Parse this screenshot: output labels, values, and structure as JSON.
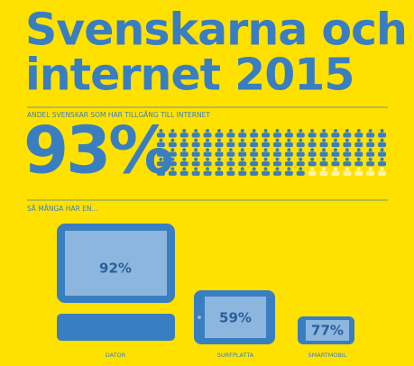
{
  "header": {
    "title_line1": "Svenskarna och",
    "title_line2": "internet 2015"
  },
  "access": {
    "caption": "ANDEL SVENSKAR SOM HAR TILLGÅNG TILL INTERNET",
    "value": "93%",
    "pictogram": {
      "total": 100,
      "filled": 93,
      "per_row": 20
    }
  },
  "devices": {
    "caption": "SÅ MÅNGA HAR EN...",
    "items": [
      {
        "label": "DATOR",
        "value": "92%"
      },
      {
        "label": "SURFPLATTA",
        "value": "59%"
      },
      {
        "label": "SMARTMOBIL",
        "value": "77%"
      }
    ]
  }
}
